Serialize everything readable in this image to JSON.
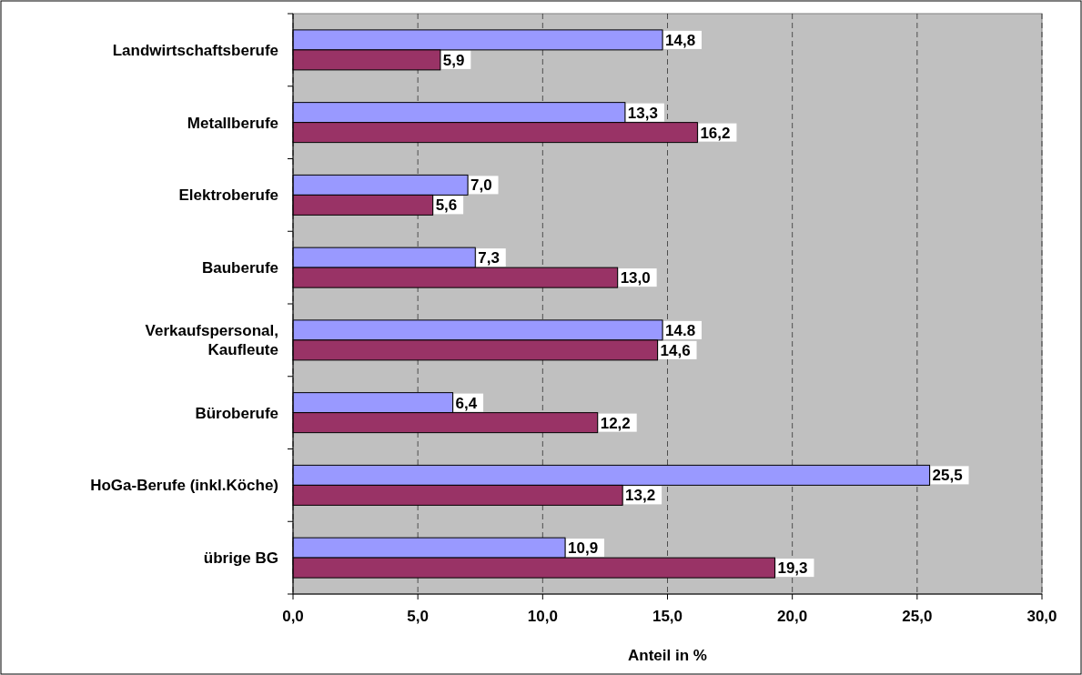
{
  "chart_data": {
    "type": "bar",
    "orientation": "horizontal",
    "xlabel": "Anteil in %",
    "categories": [
      "Landwirtschaftsberufe",
      "Metallberufe",
      "Elektroberufe",
      "Bauberufe",
      "Verkaufspersonal, Kaufleute",
      "Büroberufe",
      "HoGa-Berufe (inkl.Köche)",
      "übrige BG"
    ],
    "series": [
      {
        "color": "#9999ff",
        "values": [
          14.8,
          13.3,
          7.0,
          7.3,
          14.8,
          6.4,
          25.5,
          10.9
        ],
        "value_labels": [
          "14,8",
          "13,3",
          "7,0",
          "7,3",
          "14.8",
          "6,4",
          "25,5",
          "10,9"
        ]
      },
      {
        "color": "#993366",
        "values": [
          5.9,
          16.2,
          5.6,
          13.0,
          14.6,
          12.2,
          13.2,
          19.3
        ],
        "value_labels": [
          "5,9",
          "16,2",
          "5,6",
          "13,0",
          "14,6",
          "12,2",
          "13,2",
          "19,3"
        ]
      }
    ],
    "xlim": [
      0,
      30
    ],
    "xticks": [
      {
        "value": 0,
        "label": "0,0"
      },
      {
        "value": 5,
        "label": "5,0"
      },
      {
        "value": 10,
        "label": "10,0"
      },
      {
        "value": 15,
        "label": "15,0"
      },
      {
        "value": 20,
        "label": "20,0"
      },
      {
        "value": 25,
        "label": "25,0"
      },
      {
        "value": 30,
        "label": "30,0"
      }
    ],
    "grid": "x"
  }
}
